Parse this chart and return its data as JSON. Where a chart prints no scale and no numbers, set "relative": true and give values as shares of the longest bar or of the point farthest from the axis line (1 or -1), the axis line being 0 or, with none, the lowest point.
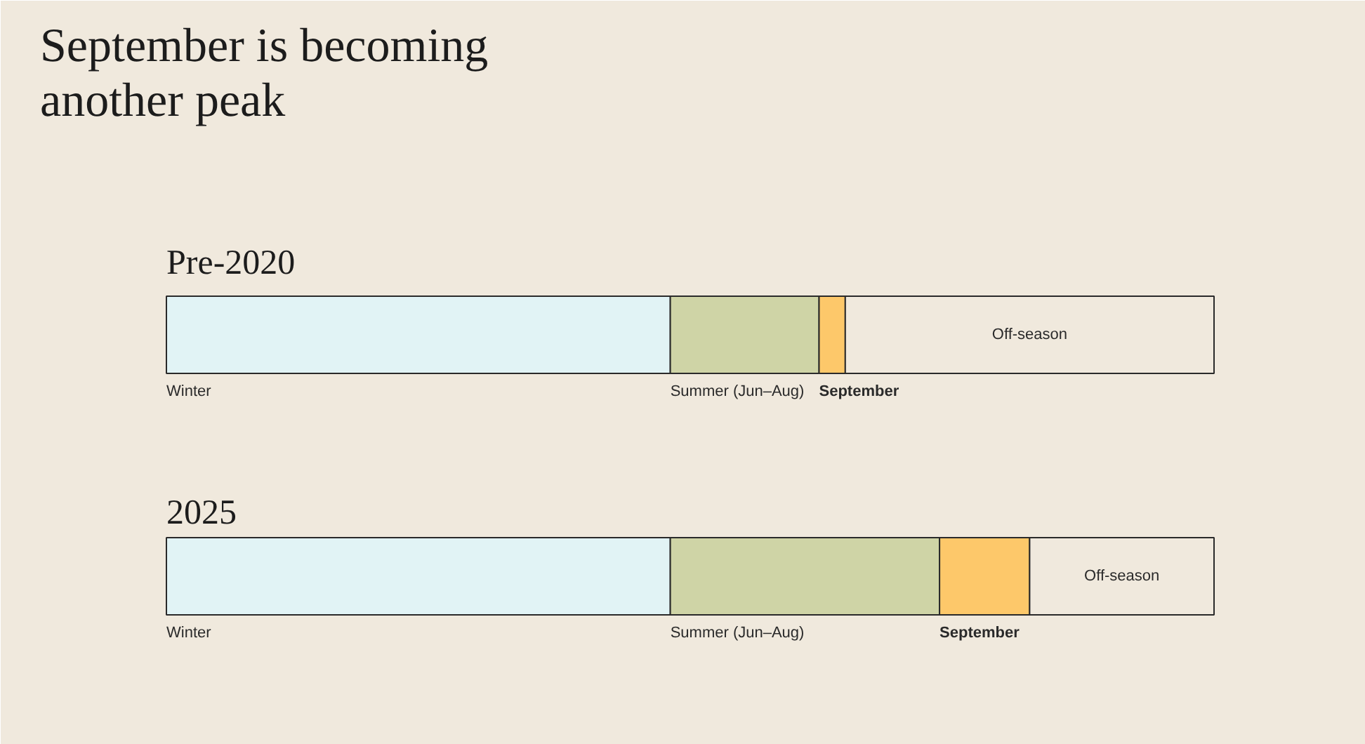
{
  "chart_data": {
    "type": "bar",
    "title": "September is becoming\nanother peak",
    "orientation": "horizontal",
    "stacked": true,
    "relative": true,
    "categories": [
      "Pre-2020",
      "2025"
    ],
    "series": [
      {
        "name": "Winter",
        "color": "#e1f3f5",
        "values": [
          0.481,
          0.481
        ]
      },
      {
        "name": "Summer (Jun–Aug)",
        "color": "#cfd4a6",
        "values": [
          0.142,
          0.257
        ]
      },
      {
        "name": "September",
        "color": "#fdc86a",
        "values": [
          0.025,
          0.086
        ]
      },
      {
        "name": "Off-season",
        "color": "#f0e9dd",
        "values": [
          0.352,
          0.176
        ]
      }
    ]
  }
}
